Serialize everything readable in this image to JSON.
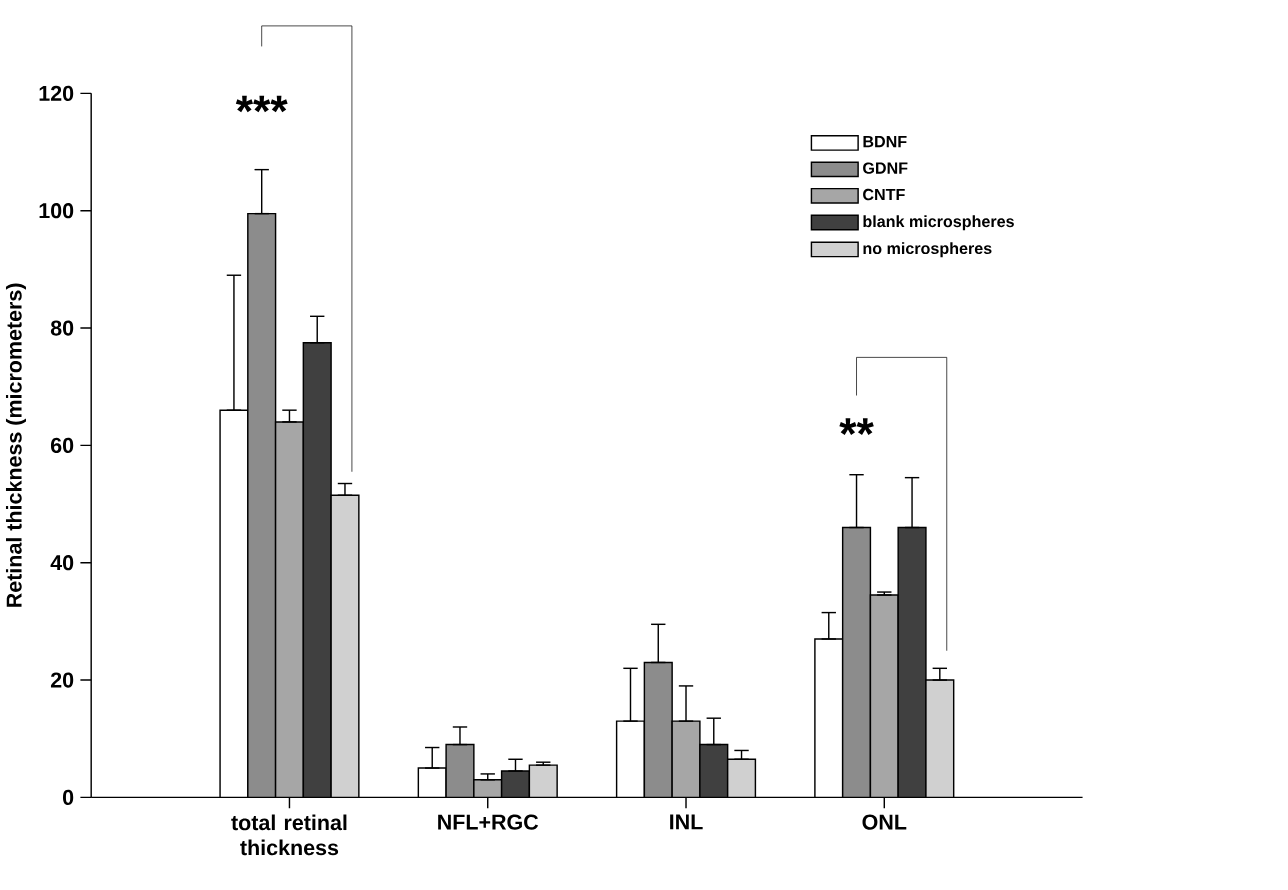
{
  "chart_data": {
    "type": "bar",
    "ylabel": "Retinal thickness (micrometers)",
    "categories": [
      "total retinal thickness",
      "NFL+RGC",
      "INL",
      "ONL"
    ],
    "series": [
      {
        "name": "BDNF",
        "color": "#ffffff",
        "values": [
          66,
          5,
          13,
          27
        ],
        "errors": [
          [
            66,
            89
          ],
          [
            5,
            8.5
          ],
          [
            13,
            22
          ],
          [
            27,
            31.5
          ]
        ]
      },
      {
        "name": "GDNF",
        "color": "#8c8c8c",
        "values": [
          99.5,
          9,
          23,
          46
        ],
        "errors": [
          [
            99.5,
            107
          ],
          [
            9,
            12
          ],
          [
            23,
            29.5
          ],
          [
            46,
            55
          ]
        ]
      },
      {
        "name": "CNTF",
        "color": "#a6a6a6",
        "values": [
          64,
          3,
          13,
          34.5
        ],
        "errors": [
          [
            64,
            66
          ],
          [
            3,
            4
          ],
          [
            13,
            19
          ],
          [
            34.5,
            35
          ]
        ]
      },
      {
        "name": "blank microspheres",
        "color": "#404040",
        "values": [
          77.5,
          4.5,
          9,
          46
        ],
        "errors": [
          [
            77.5,
            82
          ],
          [
            4.5,
            6.5
          ],
          [
            9,
            13.5
          ],
          [
            46,
            54.5
          ]
        ]
      },
      {
        "name": "no microspheres",
        "color": "#d0d0d0",
        "values": [
          51.5,
          5.5,
          6.5,
          20
        ],
        "errors": [
          [
            51.5,
            53.5
          ],
          [
            5.5,
            6
          ],
          [
            6.5,
            8
          ],
          [
            20,
            22
          ]
        ]
      }
    ],
    "ylim": [
      0,
      120
    ],
    "yticks": [
      0,
      20,
      40,
      60,
      80,
      100,
      120
    ],
    "legend": "top right",
    "annotations": [
      "***",
      "**"
    ]
  }
}
